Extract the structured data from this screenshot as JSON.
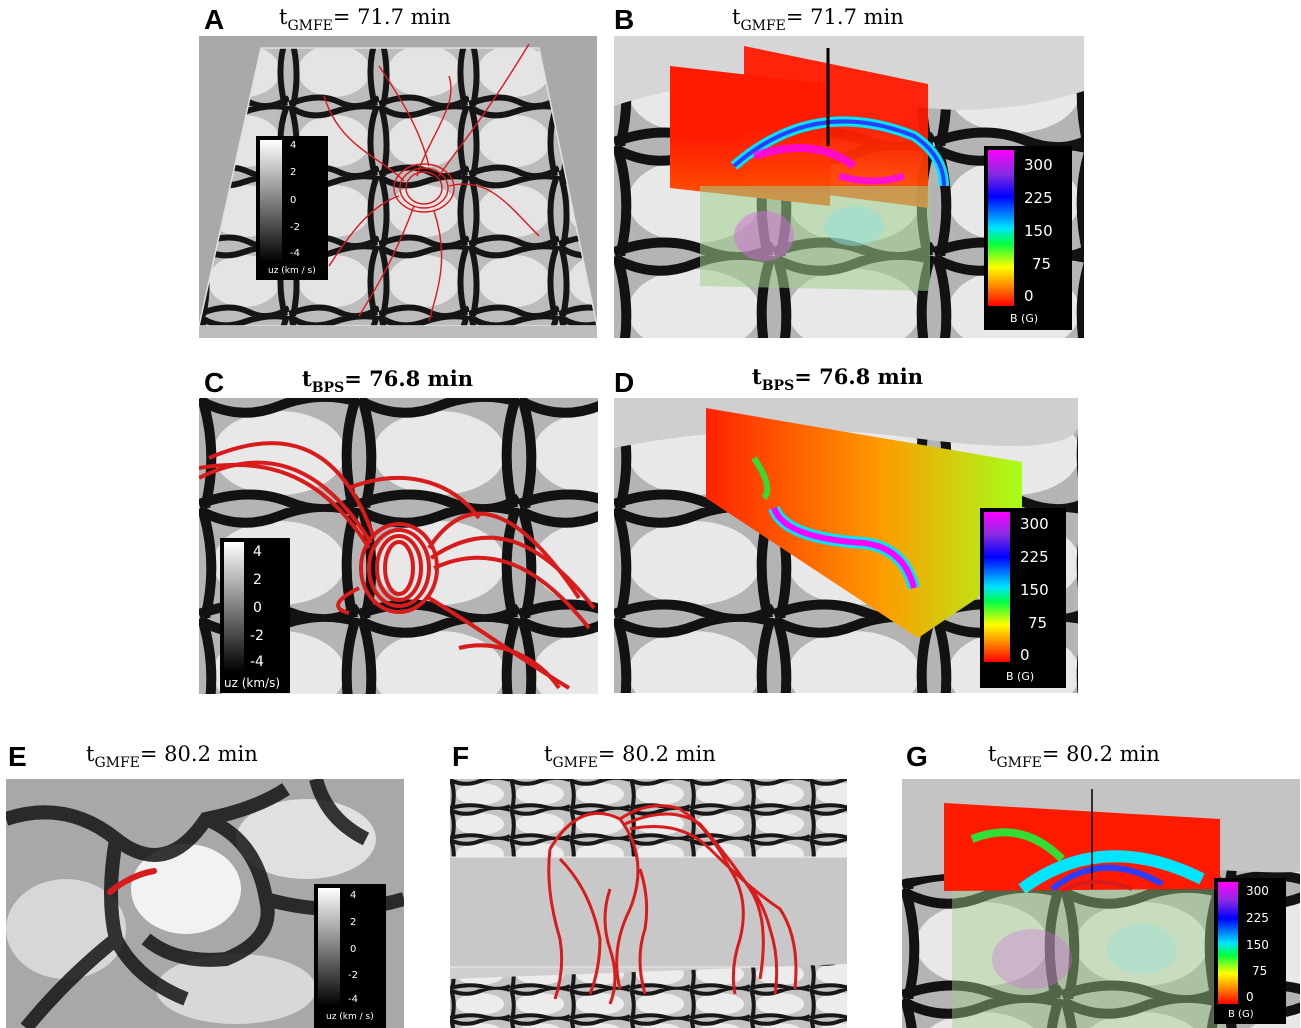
{
  "panels": {
    "A": {
      "letter": "A",
      "t_main": "t",
      "t_sub": "GMFE",
      "t_rest": "= 71.7 min",
      "colorbar": {
        "ticks": [
          "4",
          "2",
          "0",
          "-2",
          "-4"
        ],
        "label": "uz (km / s)"
      }
    },
    "B": {
      "letter": "B",
      "t_main": "t",
      "t_sub": "GMFE",
      "t_rest": "= 71.7 min",
      "colorbar": {
        "ticks": [
          "300",
          "225",
          "150",
          "75",
          "0"
        ],
        "label": "B (G)"
      }
    },
    "C": {
      "letter": "C",
      "t_main": "t",
      "t_sub": "BPS",
      "t_rest": "= 76.8 min",
      "colorbar": {
        "ticks": [
          "4",
          "2",
          "0",
          "-2",
          "-4"
        ],
        "label": "uz (km/s)"
      }
    },
    "D": {
      "letter": "D",
      "t_main": "t",
      "t_sub": "BPS",
      "t_rest": "= 76.8 min",
      "colorbar": {
        "ticks": [
          "300",
          "225",
          "150",
          "75",
          "0"
        ],
        "label": "B (G)"
      }
    },
    "E": {
      "letter": "E",
      "t_main": "t",
      "t_sub": "GMFE",
      "t_rest": "= 80.2 min",
      "colorbar": {
        "ticks": [
          "4",
          "2",
          "0",
          "-2",
          "-4"
        ],
        "label": "uz (km / s)"
      }
    },
    "F": {
      "letter": "F",
      "t_main": "t",
      "t_sub": "GMFE",
      "t_rest": "= 80.2 min"
    },
    "G": {
      "letter": "G",
      "t_main": "t",
      "t_sub": "GMFE",
      "t_rest": "= 80.2 min",
      "colorbar": {
        "ticks": [
          "300",
          "225",
          "150",
          "75",
          "0"
        ],
        "label": "B (G)"
      }
    }
  },
  "colors": {
    "field_lines": "#d81b1b",
    "strong_field": "#ff00ff",
    "weak_field": "#ff0000"
  }
}
